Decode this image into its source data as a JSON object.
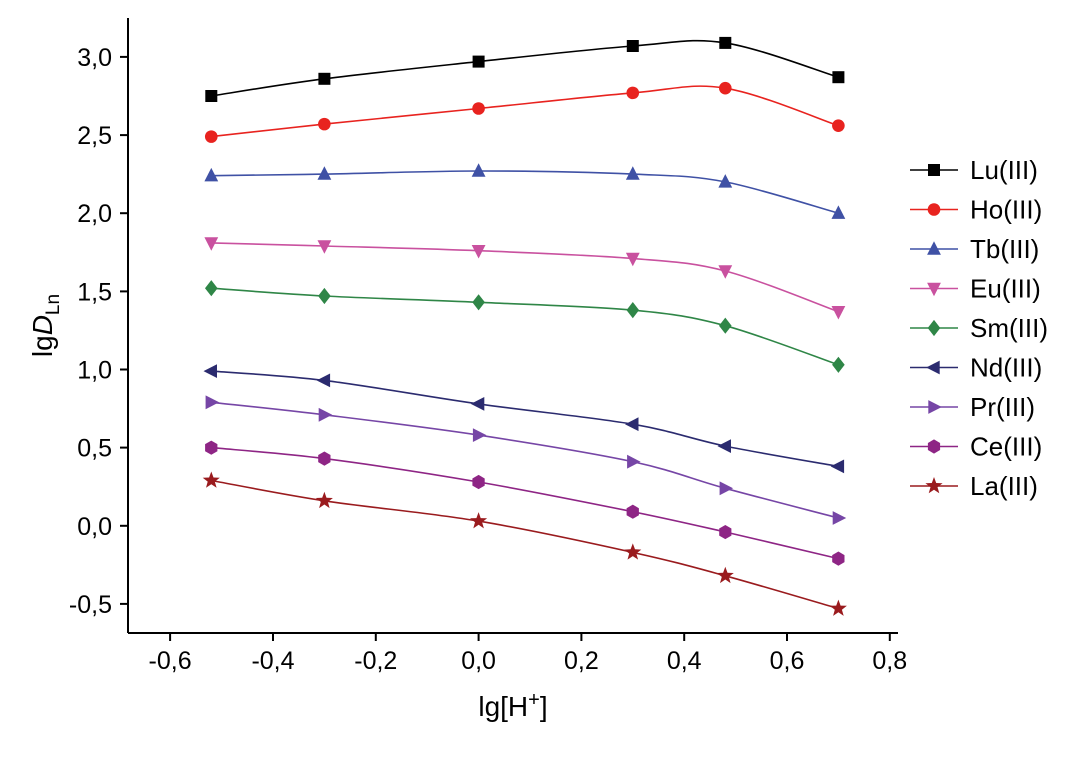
{
  "chart_data": {
    "type": "line",
    "title": "",
    "x": [
      -0.52,
      -0.3,
      0.0,
      0.3,
      0.48,
      0.7
    ],
    "series": [
      {
        "name": "Lu(III)",
        "marker": "square",
        "color": "#000000",
        "values": [
          2.75,
          2.86,
          2.97,
          3.07,
          3.09,
          2.87
        ]
      },
      {
        "name": "Ho(III)",
        "marker": "circle",
        "color": "#e8231f",
        "values": [
          2.49,
          2.57,
          2.67,
          2.77,
          2.8,
          2.56
        ]
      },
      {
        "name": "Tb(III)",
        "marker": "triangle-up",
        "color": "#3f51a5",
        "values": [
          2.24,
          2.25,
          2.27,
          2.25,
          2.2,
          2.0
        ]
      },
      {
        "name": "Eu(III)",
        "marker": "triangle-down",
        "color": "#c9519f",
        "values": [
          1.81,
          1.79,
          1.76,
          1.71,
          1.63,
          1.37
        ]
      },
      {
        "name": "Sm(III)",
        "marker": "diamond",
        "color": "#2f8647",
        "values": [
          1.52,
          1.47,
          1.43,
          1.38,
          1.28,
          1.03
        ]
      },
      {
        "name": "Nd(III)",
        "marker": "triangle-left",
        "color": "#2b2b6f",
        "values": [
          0.99,
          0.93,
          0.78,
          0.65,
          0.51,
          0.38
        ]
      },
      {
        "name": "Pr(III)",
        "marker": "triangle-right",
        "color": "#7646a6",
        "values": [
          0.79,
          0.71,
          0.58,
          0.41,
          0.24,
          0.05
        ]
      },
      {
        "name": "Ce(III)",
        "marker": "hexagon",
        "color": "#8e2585",
        "values": [
          0.5,
          0.43,
          0.28,
          0.09,
          -0.04,
          -0.21
        ]
      },
      {
        "name": "La(III)",
        "marker": "star",
        "color": "#9a1b1e",
        "values": [
          0.29,
          0.16,
          0.03,
          -0.17,
          -0.32,
          -0.53
        ]
      }
    ],
    "xlabel": {
      "prefix": "lg[H",
      "sup": "+",
      "suffix": "]"
    },
    "ylabel": {
      "prefix": "lg",
      "italic": "D",
      "sub": "Ln"
    },
    "x_ticks": {
      "values": [
        -0.6,
        -0.4,
        -0.2,
        0.0,
        0.2,
        0.4,
        0.6,
        0.8
      ],
      "labels": [
        "-0,6",
        "-0,4",
        "-0,2",
        "0,0",
        "0,2",
        "0,4",
        "0,6",
        "0,8"
      ]
    },
    "y_ticks": {
      "values": [
        -0.5,
        0.0,
        0.5,
        1.0,
        1.5,
        2.0,
        2.5,
        3.0
      ],
      "labels": [
        "-0,5",
        "0,0",
        "0,5",
        "1,0",
        "1,5",
        "2,0",
        "2,5",
        "3,0"
      ]
    },
    "xlim": [
      -0.682,
      0.816
    ],
    "ylim": [
      -0.686,
      3.249
    ],
    "grid": false,
    "legend_position": "right"
  }
}
